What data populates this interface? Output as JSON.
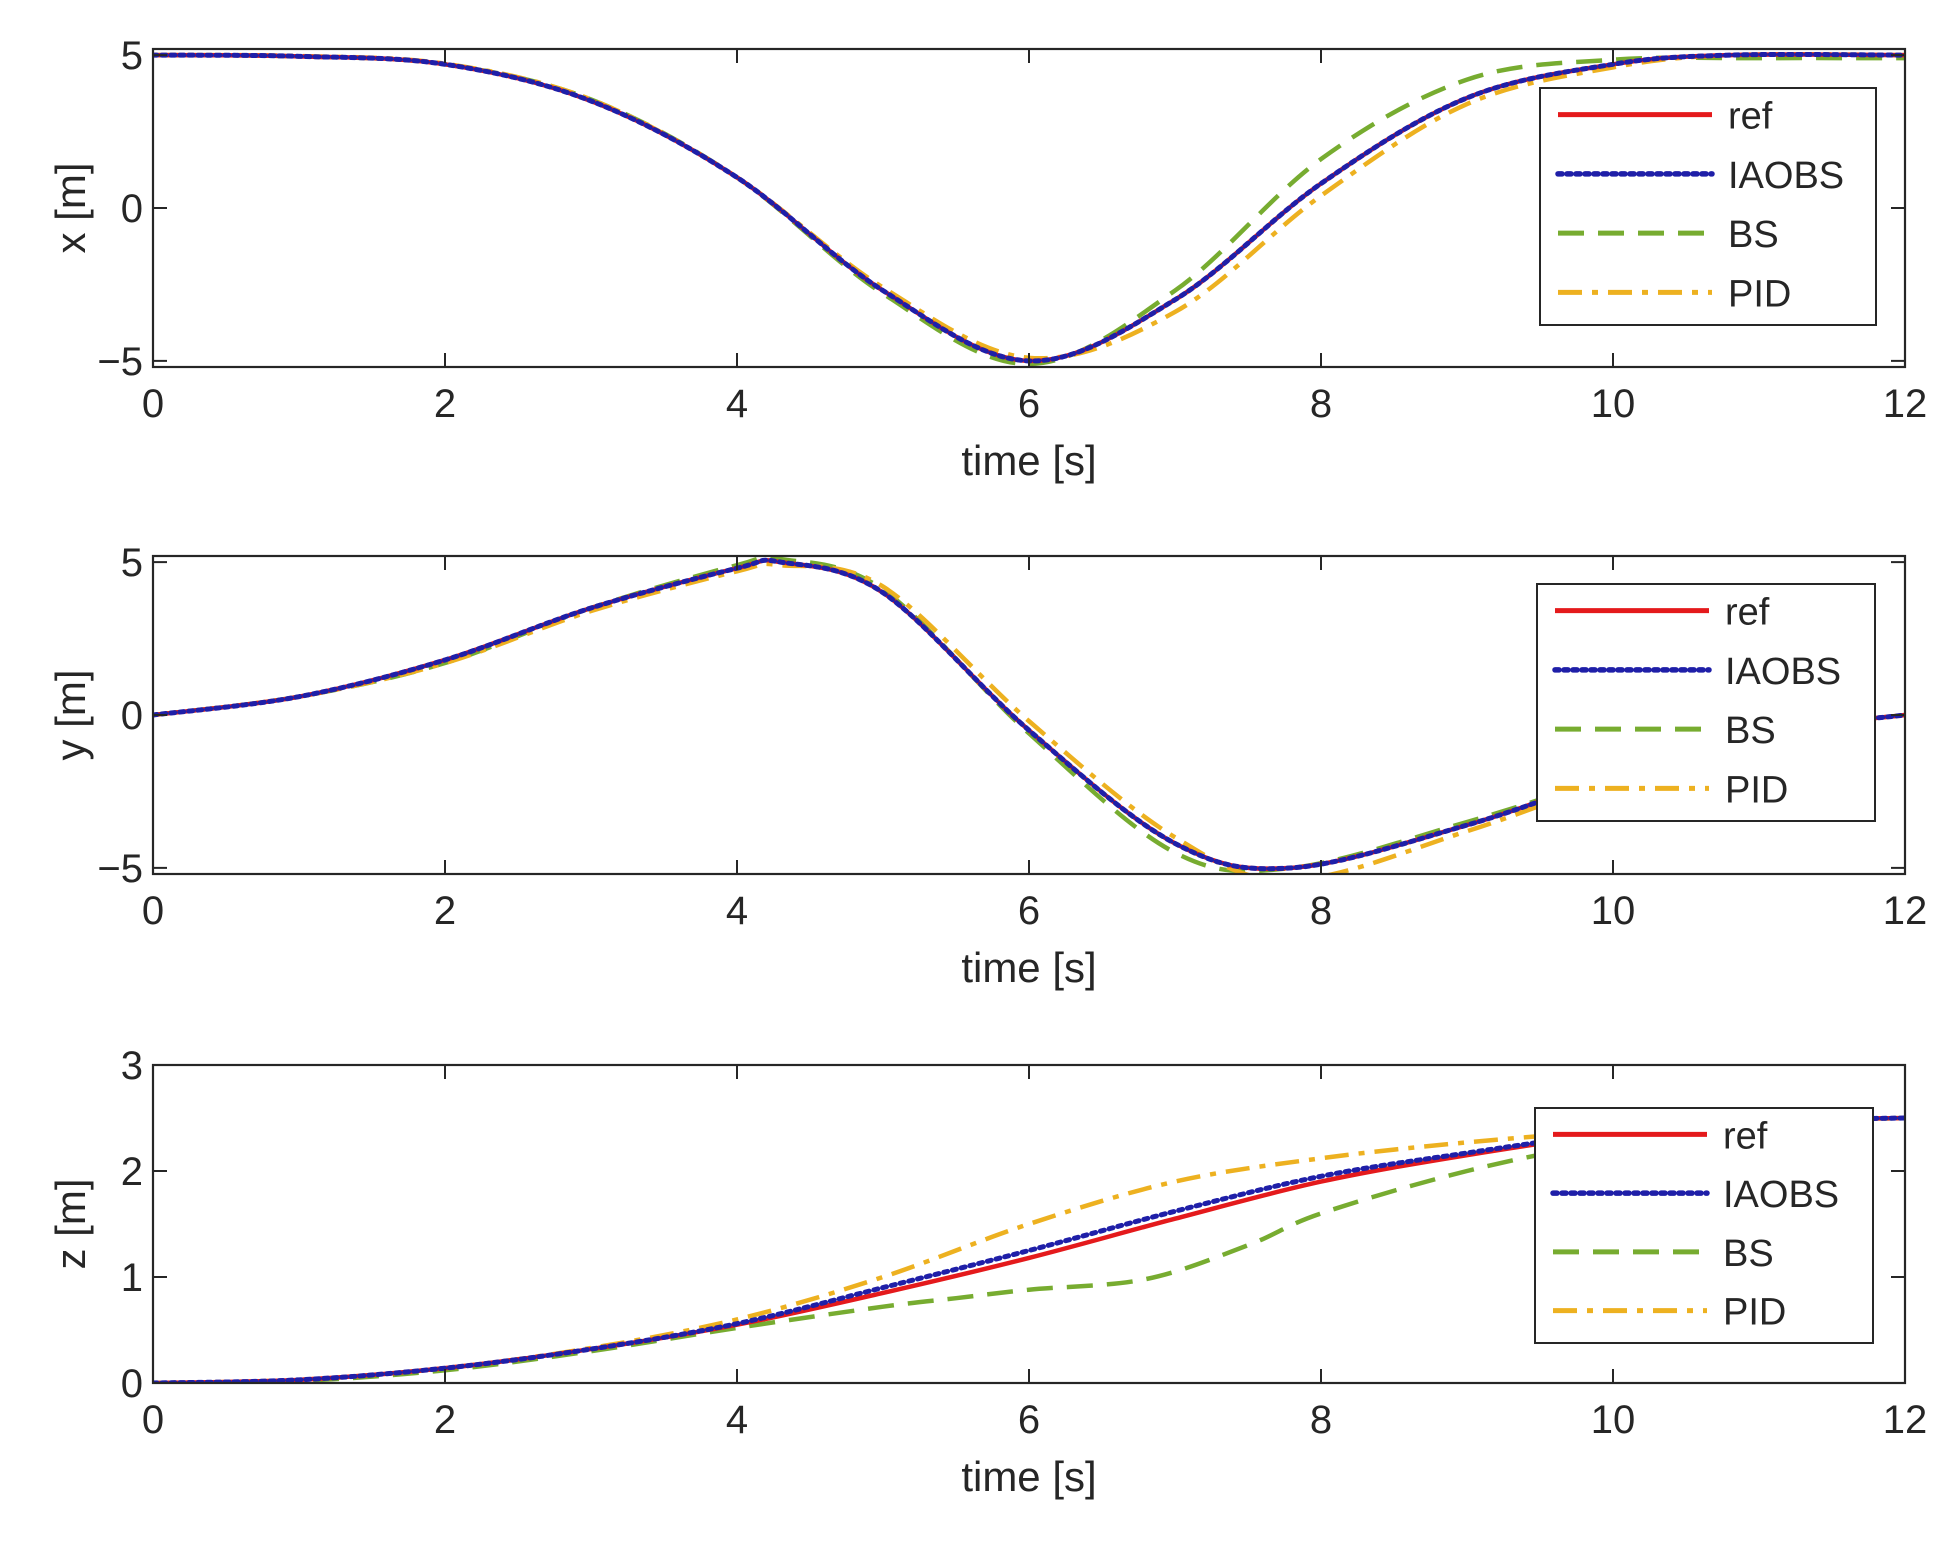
{
  "colors": {
    "ref": "#e41a1c",
    "IAOBS": "#1f1fa8",
    "BS": "#77ac30",
    "PID": "#edb120",
    "axes": "#262626",
    "legend_border": "#262626"
  },
  "chart_data": [
    {
      "type": "line",
      "xlabel": "time [s]",
      "ylabel": "x [m]",
      "xlim": [
        0,
        12
      ],
      "ylim": [
        -5.2,
        5.2
      ],
      "xticks": [
        0,
        2,
        4,
        6,
        8,
        10,
        12
      ],
      "yticks": [
        -5,
        0,
        5
      ],
      "xtick_labels": [
        "0",
        "2",
        "4",
        "6",
        "8",
        "10",
        "12"
      ],
      "ytick_labels": [
        "−5",
        "0",
        "5"
      ],
      "grid": false,
      "legend_position": "top-right",
      "series": [
        {
          "name": "ref",
          "style": "solid",
          "x": [
            0,
            1,
            2,
            3,
            4,
            5,
            6,
            7,
            8,
            9,
            10,
            10.8,
            12
          ],
          "y": [
            5,
            4.96,
            4.7,
            3.5,
            1.0,
            -2.7,
            -5.0,
            -3.0,
            0.8,
            3.6,
            4.7,
            5.0,
            5.0
          ]
        },
        {
          "name": "IAOBS",
          "style": "dotted",
          "x": [
            0,
            1,
            2,
            3,
            4,
            5,
            6,
            7,
            8,
            9,
            10,
            10.8,
            12
          ],
          "y": [
            5,
            4.96,
            4.7,
            3.5,
            1.0,
            -2.7,
            -5.0,
            -3.0,
            0.8,
            3.6,
            4.7,
            5.0,
            5.0
          ]
        },
        {
          "name": "BS",
          "style": "dashed",
          "x": [
            0,
            1,
            2,
            3,
            4,
            5,
            6,
            7,
            8,
            9,
            10,
            11,
            12
          ],
          "y": [
            5,
            4.96,
            4.7,
            3.55,
            1.0,
            -2.8,
            -5.1,
            -2.7,
            1.6,
            4.2,
            4.85,
            4.9,
            4.9
          ]
        },
        {
          "name": "PID",
          "style": "dashdot",
          "x": [
            0,
            1,
            2,
            3,
            4,
            5,
            6,
            7,
            8,
            9,
            10,
            10.8,
            12
          ],
          "y": [
            5,
            4.97,
            4.72,
            3.55,
            1.0,
            -2.6,
            -4.9,
            -3.4,
            0.4,
            3.4,
            4.6,
            5.0,
            5.0
          ]
        }
      ]
    },
    {
      "type": "line",
      "xlabel": "time [s]",
      "ylabel": "y [m]",
      "xlim": [
        0,
        12
      ],
      "ylim": [
        -5.2,
        5.2
      ],
      "xticks": [
        0,
        2,
        4,
        6,
        8,
        10,
        12
      ],
      "yticks": [
        -5,
        0,
        5
      ],
      "xtick_labels": [
        "0",
        "2",
        "4",
        "6",
        "8",
        "10",
        "12"
      ],
      "ytick_labels": [
        "−5",
        "0",
        "5"
      ],
      "grid": false,
      "legend_position": "right",
      "series": [
        {
          "name": "ref",
          "style": "solid",
          "x": [
            0,
            1,
            2,
            3,
            4,
            4.3,
            5,
            6,
            7,
            7.8,
            9,
            10,
            11,
            12
          ],
          "y": [
            0,
            0.6,
            1.8,
            3.5,
            4.8,
            5.0,
            4.0,
            -0.5,
            -4.2,
            -5.0,
            -3.6,
            -2.0,
            -0.6,
            0
          ]
        },
        {
          "name": "IAOBS",
          "style": "dotted",
          "x": [
            0,
            1,
            2,
            3,
            4,
            4.3,
            5,
            6,
            7,
            7.8,
            9,
            10,
            11,
            12
          ],
          "y": [
            0,
            0.6,
            1.8,
            3.5,
            4.8,
            5.0,
            4.0,
            -0.5,
            -4.2,
            -5.0,
            -3.6,
            -2.0,
            -0.6,
            0
          ]
        },
        {
          "name": "BS",
          "style": "dashed",
          "x": [
            0,
            1,
            2,
            3,
            4,
            4.3,
            5,
            6,
            7,
            7.8,
            9,
            10,
            11,
            12
          ],
          "y": [
            0,
            0.6,
            1.7,
            3.5,
            4.9,
            5.1,
            4.1,
            -0.6,
            -4.5,
            -5.0,
            -3.5,
            -2.0,
            -0.6,
            0
          ]
        },
        {
          "name": "PID",
          "style": "dashdot",
          "x": [
            0,
            1,
            2,
            3,
            4,
            4.3,
            5,
            6,
            7,
            7.8,
            9,
            10,
            11,
            12
          ],
          "y": [
            0,
            0.6,
            1.7,
            3.4,
            4.7,
            4.9,
            4.2,
            -0.2,
            -4.0,
            -5.4,
            -3.8,
            -2.1,
            -0.6,
            0
          ]
        }
      ]
    },
    {
      "type": "line",
      "xlabel": "time [s]",
      "ylabel": "z [m]",
      "xlim": [
        0,
        12
      ],
      "ylim": [
        0,
        3
      ],
      "xticks": [
        0,
        2,
        4,
        6,
        8,
        10,
        12
      ],
      "yticks": [
        0,
        1,
        2,
        3
      ],
      "xtick_labels": [
        "0",
        "2",
        "4",
        "6",
        "8",
        "10",
        "12"
      ],
      "ytick_labels": [
        "0",
        "1",
        "2",
        "3"
      ],
      "grid": false,
      "legend_position": "right",
      "series": [
        {
          "name": "ref",
          "style": "solid",
          "x": [
            0,
            1,
            2,
            3,
            4,
            5,
            6,
            7,
            8,
            9,
            10,
            11,
            12
          ],
          "y": [
            0,
            0.03,
            0.14,
            0.32,
            0.55,
            0.85,
            1.18,
            1.55,
            1.9,
            2.15,
            2.35,
            2.47,
            2.5
          ]
        },
        {
          "name": "IAOBS",
          "style": "dotted",
          "x": [
            0,
            1,
            2,
            3,
            4,
            5,
            6,
            7,
            8,
            9,
            10,
            11,
            12
          ],
          "y": [
            0,
            0.03,
            0.14,
            0.32,
            0.56,
            0.9,
            1.25,
            1.62,
            1.95,
            2.17,
            2.36,
            2.47,
            2.5
          ]
        },
        {
          "name": "BS",
          "style": "dashed",
          "x": [
            0,
            1,
            2,
            3,
            4,
            5,
            5.5,
            6,
            6.8,
            7.5,
            8,
            9,
            10,
            11,
            12
          ],
          "y": [
            0,
            0.02,
            0.12,
            0.3,
            0.52,
            0.72,
            0.8,
            0.88,
            0.98,
            1.3,
            1.6,
            2.0,
            2.28,
            2.45,
            2.5
          ]
        },
        {
          "name": "PID",
          "style": "dashdot",
          "x": [
            0,
            1,
            2,
            3,
            4,
            5,
            6,
            7,
            8,
            9,
            10,
            11,
            12
          ],
          "y": [
            0,
            0.03,
            0.14,
            0.33,
            0.6,
            1.0,
            1.5,
            1.9,
            2.12,
            2.27,
            2.38,
            2.47,
            2.5
          ]
        }
      ]
    }
  ]
}
